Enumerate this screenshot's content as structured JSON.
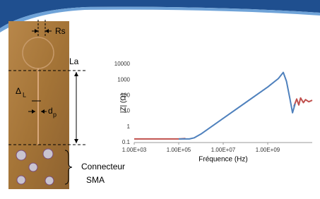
{
  "labels": {
    "rs": "Rs",
    "la": "La",
    "delta": {
      "symbol": "Δ",
      "subscript": "L"
    },
    "dp": {
      "symbol": "d",
      "subscript": "p"
    },
    "connector": "Connecteur",
    "sma": "SMA"
  },
  "chart_data": {
    "type": "line",
    "x_label": "Fréquence (Hz)",
    "y_label": "|Z| (Ω)",
    "xscale": "log",
    "yscale": "log",
    "grid": false,
    "xlim": [
      1000,
      100000000000
    ],
    "ylim": [
      0.1,
      10000
    ],
    "xticks": [
      {
        "value": 1000,
        "label": "1.00E+03"
      },
      {
        "value": 100000,
        "label": "1.00E+05"
      },
      {
        "value": 10000000,
        "label": "1.00E+07"
      },
      {
        "value": 1000000000,
        "label": "1.00E+09"
      }
    ],
    "yticks": [
      0.1,
      1,
      10,
      100,
      1000,
      10000
    ],
    "series": [
      {
        "color": "#c0504d",
        "x": [
          1000,
          10000,
          100000,
          200000,
          null,
          15000000000,
          20000000000,
          25000000000,
          30000000000,
          40000000000,
          50000000000,
          70000000000,
          100000000000
        ],
        "values": [
          0.17,
          0.17,
          0.17,
          0.18,
          null,
          20,
          60,
          25,
          70,
          35,
          55,
          40,
          50
        ]
      },
      {
        "color": "#4f81bd",
        "x": [
          100000,
          300000,
          500000,
          1000000,
          10000000,
          100000000,
          1000000000,
          3000000000,
          5000000000,
          7000000000,
          10000000000,
          13000000000,
          17000000000
        ],
        "values": [
          0.17,
          0.17,
          0.2,
          0.35,
          3.5,
          35,
          350,
          1200,
          3000,
          800,
          60,
          8,
          30
        ]
      }
    ]
  }
}
